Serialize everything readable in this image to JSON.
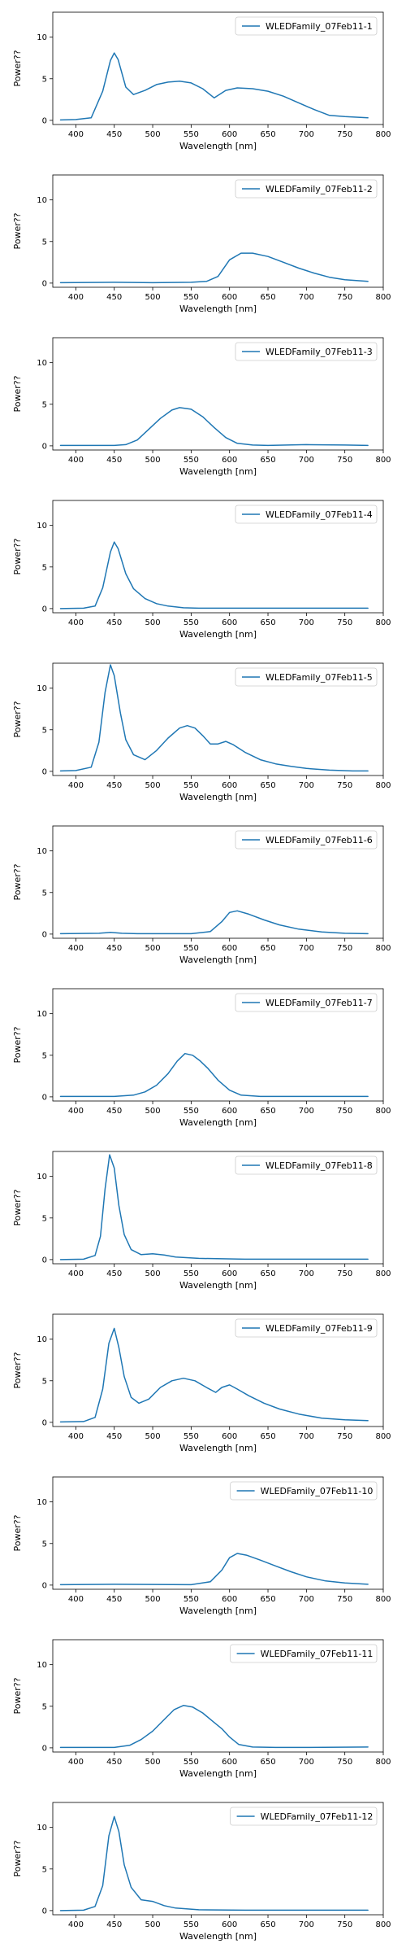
{
  "colors": {
    "line": "#1f77b4",
    "axes": "#000000",
    "legend_border": "#cccccc"
  },
  "chart_data": [
    {
      "type": "line",
      "series": [
        {
          "name": "WLEDFamily_07Feb11-1",
          "x": [
            380,
            400,
            420,
            435,
            445,
            450,
            455,
            465,
            475,
            490,
            505,
            520,
            535,
            550,
            565,
            580,
            595,
            610,
            630,
            650,
            670,
            690,
            710,
            730,
            750,
            780
          ],
          "y": [
            0.05,
            0.1,
            0.3,
            3.5,
            7.2,
            8.1,
            7.3,
            4.0,
            3.1,
            3.6,
            4.3,
            4.6,
            4.7,
            4.5,
            3.8,
            2.7,
            3.6,
            3.9,
            3.8,
            3.5,
            2.9,
            2.1,
            1.3,
            0.6,
            0.45,
            0.3
          ]
        }
      ],
      "xlabel": "Wavelength [nm]",
      "ylabel": "Power??",
      "xlim": [
        370,
        800
      ],
      "ylim": [
        -0.5,
        13
      ],
      "xticks": [
        400,
        450,
        500,
        550,
        600,
        650,
        700,
        750,
        800
      ],
      "yticks": [
        0,
        5,
        10
      ],
      "legend_position": "top-right",
      "grid": false
    },
    {
      "type": "line",
      "series": [
        {
          "name": "WLEDFamily_07Feb11-2",
          "x": [
            380,
            450,
            500,
            550,
            570,
            585,
            600,
            615,
            630,
            650,
            670,
            690,
            710,
            730,
            750,
            780
          ],
          "y": [
            0.05,
            0.1,
            0.05,
            0.1,
            0.2,
            0.8,
            2.8,
            3.6,
            3.6,
            3.2,
            2.5,
            1.8,
            1.2,
            0.7,
            0.4,
            0.2
          ]
        }
      ],
      "xlabel": "Wavelength [nm]",
      "ylabel": "Power??",
      "xlim": [
        370,
        800
      ],
      "ylim": [
        -0.5,
        13
      ],
      "xticks": [
        400,
        450,
        500,
        550,
        600,
        650,
        700,
        750,
        800
      ],
      "yticks": [
        0,
        5,
        10
      ],
      "legend_position": "top-right",
      "grid": false
    },
    {
      "type": "line",
      "series": [
        {
          "name": "WLEDFamily_07Feb11-3",
          "x": [
            380,
            450,
            465,
            480,
            495,
            510,
            525,
            535,
            550,
            565,
            580,
            595,
            610,
            630,
            650,
            700,
            750,
            780
          ],
          "y": [
            0.05,
            0.05,
            0.15,
            0.7,
            2.0,
            3.3,
            4.3,
            4.6,
            4.4,
            3.5,
            2.2,
            1.0,
            0.3,
            0.1,
            0.05,
            0.15,
            0.1,
            0.05
          ]
        }
      ],
      "xlabel": "Wavelength [nm]",
      "ylabel": "Power??",
      "xlim": [
        370,
        800
      ],
      "ylim": [
        -0.5,
        13
      ],
      "xticks": [
        400,
        450,
        500,
        550,
        600,
        650,
        700,
        750,
        800
      ],
      "yticks": [
        0,
        5,
        10
      ],
      "legend_position": "top-right",
      "grid": false
    },
    {
      "type": "line",
      "series": [
        {
          "name": "WLEDFamily_07Feb11-4",
          "x": [
            380,
            410,
            425,
            435,
            445,
            450,
            455,
            465,
            475,
            490,
            505,
            520,
            540,
            560,
            600,
            700,
            780
          ],
          "y": [
            0.0,
            0.05,
            0.3,
            2.5,
            6.8,
            8.0,
            7.2,
            4.2,
            2.4,
            1.2,
            0.6,
            0.3,
            0.1,
            0.05,
            0.05,
            0.05,
            0.05
          ]
        }
      ],
      "xlabel": "Wavelength [nm]",
      "ylabel": "Power??",
      "xlim": [
        370,
        800
      ],
      "ylim": [
        -0.5,
        13
      ],
      "xticks": [
        400,
        450,
        500,
        550,
        600,
        650,
        700,
        750,
        800
      ],
      "yticks": [
        0,
        5,
        10
      ],
      "legend_position": "top-right",
      "grid": false
    },
    {
      "type": "line",
      "series": [
        {
          "name": "WLEDFamily_07Feb11-5",
          "x": [
            380,
            400,
            420,
            430,
            438,
            445,
            450,
            458,
            465,
            475,
            490,
            505,
            520,
            535,
            545,
            555,
            565,
            575,
            585,
            595,
            605,
            620,
            640,
            660,
            680,
            700,
            730,
            760,
            780
          ],
          "y": [
            0.05,
            0.1,
            0.5,
            3.5,
            9.5,
            12.8,
            11.5,
            7.0,
            3.8,
            2.0,
            1.4,
            2.5,
            4.0,
            5.2,
            5.5,
            5.2,
            4.3,
            3.3,
            3.3,
            3.6,
            3.2,
            2.3,
            1.4,
            0.9,
            0.6,
            0.35,
            0.15,
            0.05,
            0.05
          ]
        }
      ],
      "xlabel": "Wavelength [nm]",
      "ylabel": "Power??",
      "xlim": [
        370,
        800
      ],
      "ylim": [
        -0.5,
        13
      ],
      "xticks": [
        400,
        450,
        500,
        550,
        600,
        650,
        700,
        750,
        800
      ],
      "yticks": [
        0,
        5,
        10
      ],
      "legend_position": "top-right",
      "grid": false
    },
    {
      "type": "line",
      "series": [
        {
          "name": "WLEDFamily_07Feb11-6",
          "x": [
            380,
            430,
            445,
            460,
            480,
            550,
            575,
            590,
            600,
            610,
            625,
            645,
            665,
            690,
            720,
            750,
            780
          ],
          "y": [
            0.05,
            0.1,
            0.2,
            0.1,
            0.05,
            0.05,
            0.3,
            1.5,
            2.6,
            2.8,
            2.4,
            1.7,
            1.1,
            0.6,
            0.25,
            0.1,
            0.05
          ]
        }
      ],
      "xlabel": "Wavelength [nm]",
      "ylabel": "Power??",
      "xlim": [
        370,
        800
      ],
      "ylim": [
        -0.5,
        13
      ],
      "xticks": [
        400,
        450,
        500,
        550,
        600,
        650,
        700,
        750,
        800
      ],
      "yticks": [
        0,
        5,
        10
      ],
      "legend_position": "top-right",
      "grid": false
    },
    {
      "type": "line",
      "series": [
        {
          "name": "WLEDFamily_07Feb11-7",
          "x": [
            380,
            450,
            475,
            490,
            505,
            520,
            532,
            542,
            552,
            562,
            572,
            585,
            600,
            615,
            640,
            700,
            780
          ],
          "y": [
            0.05,
            0.05,
            0.2,
            0.6,
            1.4,
            2.8,
            4.3,
            5.2,
            5.0,
            4.3,
            3.4,
            2.0,
            0.8,
            0.2,
            0.05,
            0.05,
            0.05
          ]
        }
      ],
      "xlabel": "Wavelength [nm]",
      "ylabel": "Power??",
      "xlim": [
        370,
        800
      ],
      "ylim": [
        -0.5,
        13
      ],
      "xticks": [
        400,
        450,
        500,
        550,
        600,
        650,
        700,
        750,
        800
      ],
      "yticks": [
        0,
        5,
        10
      ],
      "legend_position": "top-right",
      "grid": false
    },
    {
      "type": "line",
      "series": [
        {
          "name": "WLEDFamily_07Feb11-8",
          "x": [
            380,
            410,
            425,
            432,
            438,
            444,
            450,
            456,
            463,
            472,
            485,
            500,
            515,
            530,
            560,
            620,
            700,
            780
          ],
          "y": [
            0.0,
            0.05,
            0.5,
            2.8,
            8.5,
            12.6,
            11.0,
            6.5,
            3.0,
            1.2,
            0.6,
            0.7,
            0.55,
            0.3,
            0.15,
            0.05,
            0.05,
            0.05
          ]
        }
      ],
      "xlabel": "Wavelength [nm]",
      "ylabel": "Power??",
      "xlim": [
        370,
        800
      ],
      "ylim": [
        -0.5,
        13
      ],
      "xticks": [
        400,
        450,
        500,
        550,
        600,
        650,
        700,
        750,
        800
      ],
      "yticks": [
        0,
        5,
        10
      ],
      "legend_position": "top-right",
      "grid": false
    },
    {
      "type": "line",
      "series": [
        {
          "name": "WLEDFamily_07Feb11-9",
          "x": [
            380,
            410,
            425,
            435,
            443,
            450,
            456,
            463,
            472,
            482,
            495,
            510,
            525,
            540,
            555,
            570,
            582,
            590,
            600,
            610,
            625,
            645,
            665,
            690,
            720,
            750,
            780
          ],
          "y": [
            0.05,
            0.1,
            0.6,
            4.0,
            9.5,
            11.3,
            9.0,
            5.5,
            3.0,
            2.3,
            2.8,
            4.2,
            5.0,
            5.3,
            5.0,
            4.2,
            3.6,
            4.2,
            4.5,
            4.0,
            3.2,
            2.3,
            1.6,
            1.0,
            0.5,
            0.3,
            0.2
          ]
        }
      ],
      "xlabel": "Wavelength [nm]",
      "ylabel": "Power??",
      "xlim": [
        370,
        800
      ],
      "ylim": [
        -0.5,
        13
      ],
      "xticks": [
        400,
        450,
        500,
        550,
        600,
        650,
        700,
        750,
        800
      ],
      "yticks": [
        0,
        5,
        10
      ],
      "legend_position": "top-right",
      "grid": false
    },
    {
      "type": "line",
      "series": [
        {
          "name": "WLEDFamily_07Feb11-10",
          "x": [
            380,
            450,
            550,
            575,
            590,
            600,
            610,
            622,
            640,
            660,
            680,
            700,
            725,
            750,
            780
          ],
          "y": [
            0.05,
            0.1,
            0.05,
            0.4,
            1.8,
            3.3,
            3.8,
            3.6,
            3.0,
            2.3,
            1.6,
            1.0,
            0.5,
            0.25,
            0.1
          ]
        }
      ],
      "xlabel": "Wavelength [nm]",
      "ylabel": "Power??",
      "xlim": [
        370,
        800
      ],
      "ylim": [
        -0.5,
        13
      ],
      "xticks": [
        400,
        450,
        500,
        550,
        600,
        650,
        700,
        750,
        800
      ],
      "yticks": [
        0,
        5,
        10
      ],
      "legend_position": "top-right",
      "grid": false
    },
    {
      "type": "line",
      "series": [
        {
          "name": "WLEDFamily_07Feb11-11",
          "x": [
            380,
            450,
            470,
            485,
            500,
            515,
            528,
            540,
            552,
            565,
            578,
            590,
            600,
            612,
            630,
            660,
            700,
            780
          ],
          "y": [
            0.05,
            0.05,
            0.3,
            1.0,
            2.0,
            3.4,
            4.6,
            5.1,
            4.9,
            4.2,
            3.2,
            2.3,
            1.3,
            0.4,
            0.1,
            0.05,
            0.05,
            0.1
          ]
        }
      ],
      "xlabel": "Wavelength [nm]",
      "ylabel": "Power??",
      "xlim": [
        370,
        800
      ],
      "ylim": [
        -0.5,
        13
      ],
      "xticks": [
        400,
        450,
        500,
        550,
        600,
        650,
        700,
        750,
        800
      ],
      "yticks": [
        0,
        5,
        10
      ],
      "legend_position": "top-right",
      "grid": false
    },
    {
      "type": "line",
      "series": [
        {
          "name": "WLEDFamily_07Feb11-12",
          "x": [
            380,
            410,
            425,
            435,
            443,
            450,
            456,
            463,
            472,
            485,
            500,
            515,
            530,
            560,
            620,
            700,
            780
          ],
          "y": [
            0.0,
            0.05,
            0.5,
            3.0,
            9.0,
            11.3,
            9.5,
            5.5,
            2.8,
            1.3,
            1.1,
            0.6,
            0.3,
            0.1,
            0.05,
            0.05,
            0.05
          ]
        }
      ],
      "xlabel": "Wavelength [nm]",
      "ylabel": "Power??",
      "xlim": [
        370,
        800
      ],
      "ylim": [
        -0.5,
        13
      ],
      "xticks": [
        400,
        450,
        500,
        550,
        600,
        650,
        700,
        750,
        800
      ],
      "yticks": [
        0,
        5,
        10
      ],
      "legend_position": "top-right",
      "grid": false
    }
  ]
}
